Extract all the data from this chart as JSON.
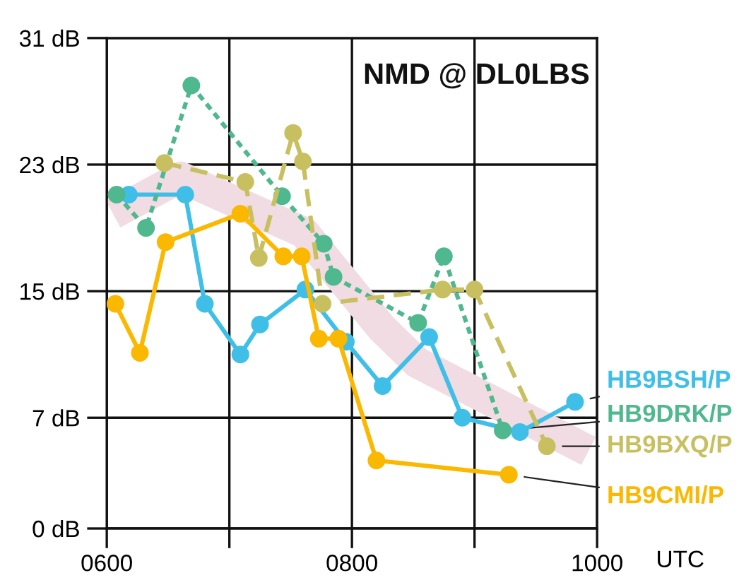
{
  "chart_data": {
    "type": "line",
    "title": "NMD @ DL0LBS",
    "xlabel": "UTC",
    "xlim": [
      600,
      1000
    ],
    "xticks": [
      {
        "value": 600,
        "label": "0600"
      },
      {
        "value": 700,
        "label": null
      },
      {
        "value": 800,
        "label": "0800"
      },
      {
        "value": 900,
        "label": null
      },
      {
        "value": 1000,
        "label": "1000"
      }
    ],
    "ylim": [
      0,
      31
    ],
    "yticks": [
      {
        "value": 0,
        "label": "0 dB"
      },
      {
        "value": 7,
        "label": "7 dB"
      },
      {
        "value": 15,
        "label": "15 dB"
      },
      {
        "value": 23,
        "label": "23 dB"
      },
      {
        "value": 31,
        "label": "31 dB"
      }
    ],
    "grid": true,
    "legend": false,
    "marker": "circle",
    "series": [
      {
        "type": "line",
        "color": "#f2dce4",
        "marker": "none",
        "x": [
          605,
          660,
          761,
          824,
          853,
          993
        ],
        "values": [
          19.9,
          22.2,
          18.7,
          12.7,
          10.5,
          4.9
        ]
      },
      {
        "name": "HB9BSH/P",
        "color": "#3fbfe8",
        "line_style": "solid",
        "x": [
          618,
          664,
          680,
          709,
          725,
          762,
          795,
          825,
          863,
          890,
          937,
          982
        ],
        "values": [
          21.1,
          21.1,
          14.2,
          11.0,
          12.9,
          15.1,
          11.8,
          9.0,
          12.1,
          7.0,
          6.1,
          8.0
        ]
      },
      {
        "name": "HB9DRK/P",
        "color": "#4fb88f",
        "line_style": "dotted",
        "x": [
          608,
          632,
          669,
          743,
          777,
          785,
          854,
          875,
          923
        ],
        "values": [
          21.1,
          19.0,
          28.0,
          21.0,
          18.0,
          15.9,
          13.0,
          17.2,
          6.2
        ]
      },
      {
        "name": "HB9BXQ/P",
        "color": "#c8c060",
        "line_style": "dashed",
        "x": [
          647,
          713,
          724,
          752,
          760,
          776,
          874,
          900,
          959
        ],
        "values": [
          23.1,
          21.9,
          17.1,
          25.0,
          23.2,
          14.2,
          15.1,
          15.1,
          5.2
        ]
      },
      {
        "name": "HB9CMI/P",
        "color": "#fbb800",
        "line_style": "solid",
        "x": [
          607,
          627,
          648,
          709,
          744,
          759,
          773,
          789,
          820,
          928
        ],
        "values": [
          14.2,
          11.1,
          18.1,
          19.9,
          17.2,
          17.2,
          12.0,
          12.0,
          4.3,
          3.4
        ]
      }
    ]
  }
}
